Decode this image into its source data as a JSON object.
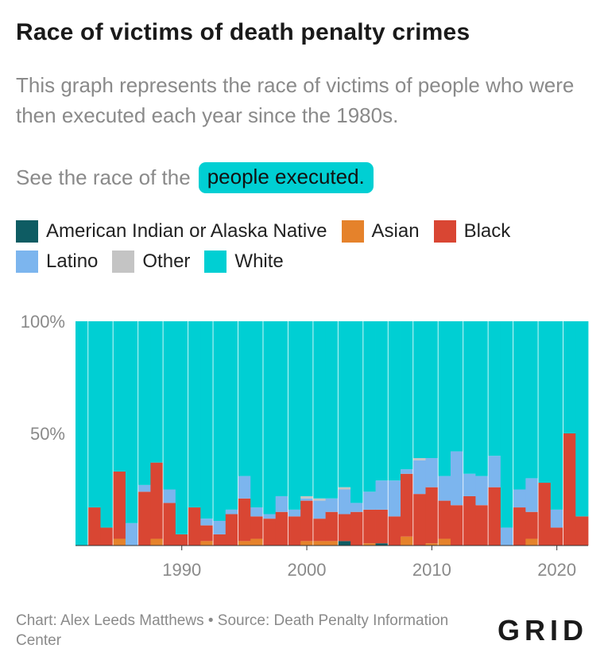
{
  "header": {
    "title": "Race of victims of death penalty crimes",
    "subtitle": "This graph represents the race of victims of people who were then executed each year since the 1980s.",
    "see_prefix": "See the race of the",
    "see_link": "people executed."
  },
  "footer": {
    "credit": "Chart: Alex Leeds Matthews • Source: Death Penalty Information Center",
    "logo": "GRID"
  },
  "colors": {
    "American Indian or Alaska Native": "#0e5c63",
    "Asian": "#e5822b",
    "Black": "#d94633",
    "Latino": "#7cb5ee",
    "Other": "#c4c4c4",
    "White": "#00cfd3"
  },
  "chart_data": {
    "type": "bar",
    "stacked": true,
    "percent": true,
    "x": [
      1982,
      1983,
      1984,
      1985,
      1986,
      1987,
      1988,
      1989,
      1990,
      1991,
      1992,
      1993,
      1994,
      1995,
      1996,
      1997,
      1998,
      1999,
      2000,
      2001,
      2002,
      2003,
      2004,
      2005,
      2006,
      2007,
      2008,
      2009,
      2010,
      2011,
      2012,
      2013,
      2014,
      2015,
      2016,
      2017,
      2018,
      2019,
      2020,
      2021,
      2022
    ],
    "x_ticks": [
      1990,
      2000,
      2010,
      2020
    ],
    "y_ticks": [
      {
        "value": 50,
        "label": "50%"
      },
      {
        "value": 100,
        "label": "100%"
      }
    ],
    "ylim": [
      0,
      100
    ],
    "series": [
      {
        "name": "American Indian or Alaska Native",
        "values": [
          0,
          0,
          0,
          0,
          0,
          0,
          0,
          0,
          0,
          0,
          0,
          0,
          0,
          0,
          0,
          0,
          0,
          0,
          0,
          0,
          0,
          2,
          0,
          0,
          1,
          0,
          0,
          0,
          0,
          0,
          0,
          0,
          0,
          0,
          0,
          0,
          0,
          0,
          0,
          0,
          0
        ]
      },
      {
        "name": "Asian",
        "values": [
          0,
          0,
          0,
          3,
          0,
          0,
          3,
          0,
          0,
          0,
          2,
          0,
          0,
          2,
          3,
          0,
          0,
          0,
          2,
          2,
          2,
          0,
          0,
          1,
          0,
          0,
          4,
          0,
          1,
          3,
          0,
          0,
          0,
          0,
          0,
          0,
          3,
          0,
          0,
          0,
          0
        ]
      },
      {
        "name": "Black",
        "values": [
          0,
          17,
          8,
          30,
          0,
          24,
          34,
          19,
          5,
          17,
          7,
          5,
          14,
          19,
          10,
          12,
          15,
          13,
          18,
          10,
          13,
          12,
          15,
          15,
          15,
          13,
          28,
          23,
          25,
          17,
          18,
          22,
          18,
          26,
          0,
          17,
          12,
          28,
          8,
          50,
          13
        ]
      },
      {
        "name": "Latino",
        "values": [
          0,
          0,
          0,
          0,
          10,
          3,
          0,
          6,
          0,
          0,
          3,
          6,
          2,
          10,
          4,
          2,
          7,
          3,
          1,
          8,
          6,
          11,
          4,
          8,
          13,
          16,
          2,
          15,
          13,
          11,
          24,
          10,
          13,
          14,
          8,
          8,
          15,
          0,
          8,
          0,
          0
        ]
      },
      {
        "name": "Other",
        "values": [
          0,
          0,
          0,
          0,
          0,
          0,
          0,
          0,
          0,
          0,
          0,
          0,
          0,
          0,
          0,
          0,
          0,
          0,
          1,
          1,
          0,
          1,
          0,
          0,
          0,
          0,
          0,
          1,
          0,
          0,
          0,
          0,
          0,
          0,
          0,
          0,
          0,
          0,
          0,
          0,
          0
        ]
      },
      {
        "name": "White",
        "values": [
          100,
          83,
          92,
          67,
          90,
          73,
          63,
          75,
          95,
          83,
          88,
          89,
          84,
          69,
          83,
          86,
          78,
          84,
          78,
          79,
          79,
          74,
          81,
          76,
          71,
          71,
          66,
          61,
          61,
          69,
          58,
          68,
          69,
          60,
          92,
          75,
          70,
          72,
          84,
          50,
          87
        ]
      }
    ]
  }
}
